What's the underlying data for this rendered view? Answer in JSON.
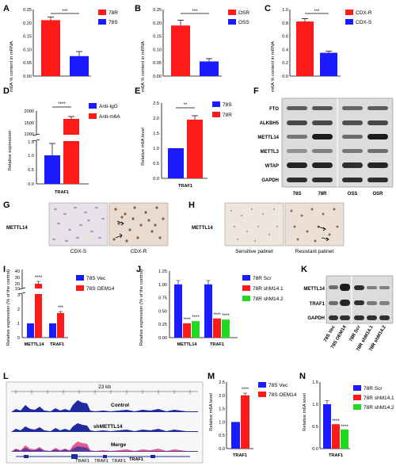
{
  "colors": {
    "red": "#ff1a1a",
    "blue": "#1b1bff",
    "green": "#21d921",
    "navy": "#1e2a9e",
    "pink": "#e0337a"
  },
  "panels": {
    "A": {
      "label": "A",
      "ylabel": "m6A % content in mRNA",
      "yticks": [
        "0.00",
        "0.05",
        "0.10",
        "0.15",
        "0.20",
        "0.25"
      ],
      "sig": "***",
      "legend": [
        "78R",
        "78S"
      ]
    },
    "B": {
      "label": "B",
      "ylabel": "m6A % content in mRNA",
      "yticks": [
        "0.00",
        "0.05",
        "0.10",
        "0.15",
        "0.20",
        "0.25"
      ],
      "sig": "***",
      "legend": [
        "OSR",
        "OSS"
      ]
    },
    "C": {
      "label": "C",
      "ylabel": "m6A % content in mRNA",
      "yticks": [
        "0.0",
        "0.2",
        "0.4",
        "0.6",
        "0.8",
        "1.0"
      ],
      "sig": "***",
      "legend": [
        "CDX-R",
        "CDX-S"
      ]
    },
    "D": {
      "label": "D",
      "ylabel": "Relative expression",
      "yticks_low": [
        "0.0",
        "0.5",
        "1.0",
        "1.5"
      ],
      "yticks_high": [
        "1000",
        "1500",
        "2000"
      ],
      "sig": "****",
      "xlabel": "TRAF1",
      "legend": [
        "Anti-IgG",
        "Anti-m6A"
      ]
    },
    "E": {
      "label": "E",
      "ylabel": "Relative m6A level",
      "yticks": [
        "0.0",
        "0.5",
        "1.0",
        "1.5",
        "2.0",
        "2.5"
      ],
      "sig": "**",
      "xlabel": "TRAF1",
      "legend": [
        "78S",
        "78R"
      ]
    },
    "F": {
      "label": "F",
      "rows": [
        "FTO",
        "ALKBH5",
        "METTL14",
        "METTL3",
        "WTAP",
        "GAPDH"
      ],
      "lanes": [
        "78S",
        "78R",
        "OSS",
        "OSR"
      ]
    },
    "G": {
      "label": "G",
      "row": "METTL14",
      "captions": [
        "CDX-S",
        "CDX-R"
      ]
    },
    "H": {
      "label": "H",
      "row": "METTL14",
      "captions": [
        "Sensitive patinet",
        "Resistant patinet"
      ]
    },
    "I": {
      "label": "I",
      "ylabel": "Relative expression (% of the control)",
      "yticks_low": [
        "0",
        "1",
        "2",
        "3"
      ],
      "yticks_high": [
        "10",
        "20",
        "30",
        "40"
      ],
      "categories": [
        "METTL14",
        "TRAF1"
      ],
      "sig": [
        "****",
        "***"
      ],
      "legend": [
        "78S Vec",
        "78S OEM14"
      ]
    },
    "J": {
      "label": "J",
      "ylabel": "Relative expression (% of the control)",
      "yticks": [
        "0.00",
        "0.25",
        "0.50",
        "0.75",
        "1.00",
        "1.25"
      ],
      "categories": [
        "METTL14",
        "TRAF1"
      ],
      "sig": [
        "****",
        "****",
        "****",
        "****"
      ],
      "legend": [
        "78R Scr",
        "78R shM14.1",
        "78R shM14.2"
      ]
    },
    "K": {
      "label": "K",
      "rows": [
        "METTL14",
        "TRAF1",
        "GAPDH"
      ],
      "lanes": [
        "78S Vec",
        "78S OEM14",
        "78R Scr",
        "78R shM14.1",
        "78R shM14.2"
      ]
    },
    "L": {
      "label": "L",
      "scale": "23 kb",
      "tracks": [
        "Control",
        "shMETTL14",
        "Merge"
      ],
      "genes": [
        "TRAF1",
        "TRAF1",
        "TRAF1",
        "TRAF1"
      ]
    },
    "M": {
      "label": "M",
      "ylabel": "Relative m6A level",
      "yticks": [
        "0.0",
        "0.5",
        "1.0",
        "1.5",
        "2.0",
        "2.5"
      ],
      "sig": "****",
      "xlabel": "TRAF1",
      "legend": [
        "78S Vec",
        "78S OEM14"
      ]
    },
    "N": {
      "label": "N",
      "ylabel": "Relative m6A level",
      "yticks": [
        "0.0",
        "0.5",
        "1.0",
        "1.5"
      ],
      "sig": [
        "****",
        "****"
      ],
      "xlabel": "TRAF1",
      "legend": [
        "78R Scr",
        "78R shM14.1",
        "78R shM14.2"
      ]
    }
  },
  "chart_data": [
    {
      "panel": "A",
      "type": "bar",
      "categories": [
        "78R",
        "78S"
      ],
      "values": [
        0.21,
        0.075
      ],
      "ylabel": "m6A % content in mRNA",
      "ylim": [
        0,
        0.25
      ],
      "legend": [
        "78R",
        "78S"
      ]
    },
    {
      "panel": "B",
      "type": "bar",
      "categories": [
        "OSR",
        "OSS"
      ],
      "values": [
        0.19,
        0.055
      ],
      "ylabel": "m6A % content in mRNA",
      "ylim": [
        0,
        0.25
      ],
      "legend": [
        "OSR",
        "OSS"
      ]
    },
    {
      "panel": "C",
      "type": "bar",
      "categories": [
        "CDX-R",
        "CDX-S"
      ],
      "values": [
        0.82,
        0.35
      ],
      "ylabel": "m6A % content in mRNA",
      "ylim": [
        0,
        1.0
      ],
      "legend": [
        "CDX-R",
        "CDX-S"
      ]
    },
    {
      "panel": "D",
      "type": "bar",
      "categories": [
        "TRAF1"
      ],
      "series": [
        {
          "name": "Anti-IgG",
          "values": [
            1.0
          ]
        },
        {
          "name": "Anti-m6A",
          "values": [
            1650
          ]
        }
      ],
      "ylabel": "Relative expression",
      "axis_break": [
        1.5,
        1000
      ],
      "xlabel": "TRAF1"
    },
    {
      "panel": "E",
      "type": "bar",
      "categories": [
        "TRAF1"
      ],
      "series": [
        {
          "name": "78S",
          "values": [
            1.0
          ]
        },
        {
          "name": "78R",
          "values": [
            1.95
          ]
        }
      ],
      "ylabel": "Relative m6A level",
      "ylim": [
        0,
        2.5
      ],
      "xlabel": "TRAF1"
    },
    {
      "panel": "I",
      "type": "bar",
      "categories": [
        "METTL14",
        "TRAF1"
      ],
      "series": [
        {
          "name": "78S Vec",
          "values": [
            1.0,
            1.0
          ]
        },
        {
          "name": "78S OEM14",
          "values": [
            28,
            1.7
          ]
        }
      ],
      "ylabel": "Relative expression (% of the control)",
      "axis_break": [
        3,
        10
      ]
    },
    {
      "panel": "J",
      "type": "bar",
      "categories": [
        "METTL14",
        "TRAF1"
      ],
      "series": [
        {
          "name": "78R Scr",
          "values": [
            1.0,
            1.0
          ]
        },
        {
          "name": "78R shM14.1",
          "values": [
            0.27,
            0.36
          ]
        },
        {
          "name": "78R shM14.2",
          "values": [
            0.31,
            0.34
          ]
        }
      ],
      "ylabel": "Relative expression (% of the control)",
      "ylim": [
        0,
        1.25
      ]
    },
    {
      "panel": "M",
      "type": "bar",
      "categories": [
        "TRAF1"
      ],
      "series": [
        {
          "name": "78S Vec",
          "values": [
            1.0
          ]
        },
        {
          "name": "78S OEM14",
          "values": [
            2.0
          ]
        }
      ],
      "ylabel": "Relative m6A level",
      "ylim": [
        0,
        2.5
      ],
      "xlabel": "TRAF1"
    },
    {
      "panel": "N",
      "type": "bar",
      "categories": [
        "TRAF1"
      ],
      "series": [
        {
          "name": "78R Scr",
          "values": [
            1.0
          ]
        },
        {
          "name": "78R shM14.1",
          "values": [
            0.55
          ]
        },
        {
          "name": "78R shM14.2",
          "values": [
            0.43
          ]
        }
      ],
      "ylabel": "Relative m6A level",
      "ylim": [
        0,
        1.5
      ],
      "xlabel": "TRAF1"
    }
  ]
}
